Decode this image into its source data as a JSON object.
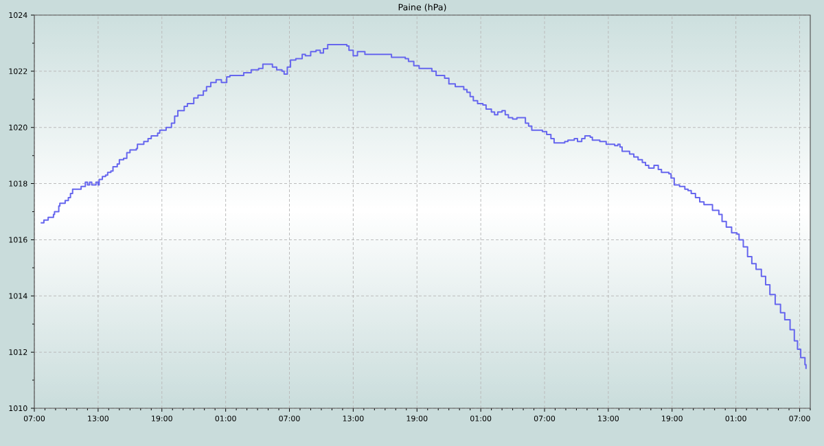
{
  "chart_data": {
    "type": "step",
    "title": "Paine (hPa)",
    "x": [
      "2000-01-01T07:36",
      "2000-01-01T07:54",
      "2000-01-01T08:18",
      "2000-01-01T08:48",
      "2000-01-01T08:54",
      "2000-01-01T09:18",
      "2000-01-01T09:24",
      "2000-01-01T09:54",
      "2000-01-01T10:12",
      "2000-01-01T10:24",
      "2000-01-01T10:36",
      "2000-01-01T11:24",
      "2000-01-01T11:48",
      "2000-01-01T12:00",
      "2000-01-01T12:12",
      "2000-01-01T12:24",
      "2000-01-01T12:48",
      "2000-01-01T13:00",
      "2000-01-01T13:06",
      "2000-01-01T13:24",
      "2000-01-01T13:42",
      "2000-01-01T13:54",
      "2000-01-01T14:12",
      "2000-01-01T14:24",
      "2000-01-01T14:48",
      "2000-01-01T15:00",
      "2000-01-01T15:24",
      "2000-01-01T15:42",
      "2000-01-01T16:00",
      "2000-01-01T16:36",
      "2000-01-01T16:42",
      "2000-01-01T17:18",
      "2000-01-01T17:42",
      "2000-01-01T18:00",
      "2000-01-01T18:36",
      "2000-01-01T18:48",
      "2000-01-01T19:24",
      "2000-01-01T19:54",
      "2000-01-01T20:12",
      "2000-01-01T20:30",
      "2000-01-01T21:06",
      "2000-01-01T21:24",
      "2000-01-01T22:00",
      "2000-01-01T22:24",
      "2000-01-01T22:54",
      "2000-01-01T23:12",
      "2000-01-01T23:36",
      "2000-01-02T00:06",
      "2000-01-02T00:36",
      "2000-01-02T01:06",
      "2000-01-02T01:24",
      "2000-01-02T02:42",
      "2000-01-02T03:24",
      "2000-01-02T04:06",
      "2000-01-02T04:30",
      "2000-01-02T05:24",
      "2000-01-02T05:48",
      "2000-01-02T06:18",
      "2000-01-02T06:30",
      "2000-01-02T06:48",
      "2000-01-02T07:06",
      "2000-01-02T07:36",
      "2000-01-02T08:12",
      "2000-01-02T08:30",
      "2000-01-02T09:00",
      "2000-01-02T09:30",
      "2000-01-02T09:54",
      "2000-01-02T10:12",
      "2000-01-02T10:36",
      "2000-01-02T12:24",
      "2000-01-02T12:36",
      "2000-01-02T13:00",
      "2000-01-02T13:24",
      "2000-01-02T14:06",
      "2000-01-02T16:36",
      "2000-01-02T17:54",
      "2000-01-02T18:12",
      "2000-01-02T18:42",
      "2000-01-02T19:12",
      "2000-01-02T20:24",
      "2000-01-02T20:48",
      "2000-01-02T21:36",
      "2000-01-02T22:00",
      "2000-01-02T22:36",
      "2000-01-02T23:24",
      "2000-01-02T23:42",
      "2000-01-03T00:00",
      "2000-01-03T00:18",
      "2000-01-03T00:42",
      "2000-01-03T01:12",
      "2000-01-03T01:30",
      "2000-01-03T02:00",
      "2000-01-03T02:18",
      "2000-01-03T02:36",
      "2000-01-03T03:00",
      "2000-01-03T03:18",
      "2000-01-03T03:36",
      "2000-01-03T04:00",
      "2000-01-03T04:24",
      "2000-01-03T05:12",
      "2000-01-03T05:30",
      "2000-01-03T05:48",
      "2000-01-03T06:48",
      "2000-01-03T07:12",
      "2000-01-03T07:36",
      "2000-01-03T07:54",
      "2000-01-03T08:54",
      "2000-01-03T09:12",
      "2000-01-03T09:48",
      "2000-01-03T10:06",
      "2000-01-03T10:30",
      "2000-01-03T10:48",
      "2000-01-03T11:18",
      "2000-01-03T11:30",
      "2000-01-03T12:12",
      "2000-01-03T12:48",
      "2000-01-03T13:36",
      "2000-01-03T13:54",
      "2000-01-03T14:06",
      "2000-01-03T14:18",
      "2000-01-03T15:00",
      "2000-01-03T15:24",
      "2000-01-03T15:48",
      "2000-01-03T16:12",
      "2000-01-03T16:30",
      "2000-01-03T16:48",
      "2000-01-03T17:18",
      "2000-01-03T17:42",
      "2000-01-03T18:00",
      "2000-01-03T18:42",
      "2000-01-03T18:54",
      "2000-01-03T19:12",
      "2000-01-03T19:42",
      "2000-01-03T20:12",
      "2000-01-03T20:30",
      "2000-01-03T20:48",
      "2000-01-03T21:12",
      "2000-01-03T21:36",
      "2000-01-03T22:00",
      "2000-01-03T22:48",
      "2000-01-03T23:24",
      "2000-01-03T23:42",
      "2000-01-04T00:06",
      "2000-01-04T00:36",
      "2000-01-04T01:06",
      "2000-01-04T01:18",
      "2000-01-04T01:42",
      "2000-01-04T02:06",
      "2000-01-04T02:30",
      "2000-01-04T02:54",
      "2000-01-04T03:24",
      "2000-01-04T03:48",
      "2000-01-04T04:12",
      "2000-01-04T04:42",
      "2000-01-04T05:12",
      "2000-01-04T05:36",
      "2000-01-04T06:06",
      "2000-01-04T06:30",
      "2000-01-04T06:48",
      "2000-01-04T07:06",
      "2000-01-04T07:30",
      "2000-01-04T07:36"
    ],
    "series": [
      {
        "color": "#6666ee",
        "values": [
          1016.6,
          1016.7,
          1016.8,
          1016.9,
          1017.0,
          1017.2,
          1017.3,
          1017.4,
          1017.5,
          1017.65,
          1017.8,
          1017.9,
          1018.05,
          1017.95,
          1018.05,
          1017.95,
          1018.05,
          1017.95,
          1018.15,
          1018.25,
          1018.3,
          1018.4,
          1018.45,
          1018.6,
          1018.7,
          1018.85,
          1018.9,
          1019.1,
          1019.2,
          1019.25,
          1019.4,
          1019.5,
          1019.6,
          1019.7,
          1019.8,
          1019.9,
          1020.0,
          1020.15,
          1020.4,
          1020.6,
          1020.75,
          1020.85,
          1021.05,
          1021.15,
          1021.3,
          1021.45,
          1021.6,
          1021.7,
          1021.6,
          1021.8,
          1021.85,
          1021.95,
          1022.05,
          1022.1,
          1022.25,
          1022.15,
          1022.05,
          1022.0,
          1021.9,
          1022.15,
          1022.4,
          1022.45,
          1022.6,
          1022.55,
          1022.7,
          1022.75,
          1022.65,
          1022.8,
          1022.95,
          1022.9,
          1022.75,
          1022.55,
          1022.7,
          1022.6,
          1022.5,
          1022.45,
          1022.35,
          1022.2,
          1022.1,
          1022.0,
          1021.85,
          1021.75,
          1021.55,
          1021.45,
          1021.35,
          1021.25,
          1021.1,
          1020.95,
          1020.85,
          1020.8,
          1020.65,
          1020.55,
          1020.45,
          1020.55,
          1020.6,
          1020.45,
          1020.35,
          1020.3,
          1020.35,
          1020.15,
          1020.05,
          1019.9,
          1019.85,
          1019.75,
          1019.6,
          1019.45,
          1019.5,
          1019.55,
          1019.6,
          1019.5,
          1019.6,
          1019.7,
          1019.65,
          1019.55,
          1019.5,
          1019.4,
          1019.35,
          1019.4,
          1019.3,
          1019.15,
          1019.05,
          1018.95,
          1018.85,
          1018.75,
          1018.65,
          1018.55,
          1018.65,
          1018.5,
          1018.4,
          1018.35,
          1018.2,
          1017.95,
          1017.9,
          1017.8,
          1017.75,
          1017.65,
          1017.5,
          1017.35,
          1017.25,
          1017.05,
          1016.9,
          1016.65,
          1016.45,
          1016.25,
          1016.2,
          1016.0,
          1015.75,
          1015.4,
          1015.15,
          1014.95,
          1014.7,
          1014.4,
          1014.05,
          1013.7,
          1013.4,
          1013.15,
          1012.8,
          1012.4,
          1012.1,
          1011.8,
          1011.55,
          1011.4
        ]
      }
    ],
    "xlim": [
      "2000-01-01T07:00",
      "2000-01-04T08:00"
    ],
    "xticks": [
      {
        "value": "2000-01-01T07:00",
        "label": "07:00"
      },
      {
        "value": "2000-01-01T08:00",
        "label": null
      },
      {
        "value": "2000-01-01T09:00",
        "label": null
      },
      {
        "value": "2000-01-01T10:00",
        "label": null
      },
      {
        "value": "2000-01-01T11:00",
        "label": null
      },
      {
        "value": "2000-01-01T12:00",
        "label": null
      },
      {
        "value": "2000-01-01T13:00",
        "label": "13:00"
      },
      {
        "value": "2000-01-01T14:00",
        "label": null
      },
      {
        "value": "2000-01-01T15:00",
        "label": null
      },
      {
        "value": "2000-01-01T16:00",
        "label": null
      },
      {
        "value": "2000-01-01T17:00",
        "label": null
      },
      {
        "value": "2000-01-01T18:00",
        "label": null
      },
      {
        "value": "2000-01-01T19:00",
        "label": "19:00"
      },
      {
        "value": "2000-01-01T20:00",
        "label": null
      },
      {
        "value": "2000-01-01T21:00",
        "label": null
      },
      {
        "value": "2000-01-01T22:00",
        "label": null
      },
      {
        "value": "2000-01-01T23:00",
        "label": null
      },
      {
        "value": "2000-01-02T00:00",
        "label": null
      },
      {
        "value": "2000-01-02T01:00",
        "label": "01:00"
      },
      {
        "value": "2000-01-02T02:00",
        "label": null
      },
      {
        "value": "2000-01-02T03:00",
        "label": null
      },
      {
        "value": "2000-01-02T04:00",
        "label": null
      },
      {
        "value": "2000-01-02T05:00",
        "label": null
      },
      {
        "value": "2000-01-02T06:00",
        "label": null
      },
      {
        "value": "2000-01-02T07:00",
        "label": "07:00"
      },
      {
        "value": "2000-01-02T08:00",
        "label": null
      },
      {
        "value": "2000-01-02T09:00",
        "label": null
      },
      {
        "value": "2000-01-02T10:00",
        "label": null
      },
      {
        "value": "2000-01-02T11:00",
        "label": null
      },
      {
        "value": "2000-01-02T12:00",
        "label": null
      },
      {
        "value": "2000-01-02T13:00",
        "label": "13:00"
      },
      {
        "value": "2000-01-02T14:00",
        "label": null
      },
      {
        "value": "2000-01-02T15:00",
        "label": null
      },
      {
        "value": "2000-01-02T16:00",
        "label": null
      },
      {
        "value": "2000-01-02T17:00",
        "label": null
      },
      {
        "value": "2000-01-02T18:00",
        "label": null
      },
      {
        "value": "2000-01-02T19:00",
        "label": "19:00"
      },
      {
        "value": "2000-01-02T20:00",
        "label": null
      },
      {
        "value": "2000-01-02T21:00",
        "label": null
      },
      {
        "value": "2000-01-02T22:00",
        "label": null
      },
      {
        "value": "2000-01-02T23:00",
        "label": null
      },
      {
        "value": "2000-01-03T00:00",
        "label": null
      },
      {
        "value": "2000-01-03T01:00",
        "label": "01:00"
      },
      {
        "value": "2000-01-03T02:00",
        "label": null
      },
      {
        "value": "2000-01-03T03:00",
        "label": null
      },
      {
        "value": "2000-01-03T04:00",
        "label": null
      },
      {
        "value": "2000-01-03T05:00",
        "label": null
      },
      {
        "value": "2000-01-03T06:00",
        "label": null
      },
      {
        "value": "2000-01-03T07:00",
        "label": "07:00"
      },
      {
        "value": "2000-01-03T08:00",
        "label": null
      },
      {
        "value": "2000-01-03T09:00",
        "label": null
      },
      {
        "value": "2000-01-03T10:00",
        "label": null
      },
      {
        "value": "2000-01-03T11:00",
        "label": null
      },
      {
        "value": "2000-01-03T12:00",
        "label": null
      },
      {
        "value": "2000-01-03T13:00",
        "label": "13:00"
      },
      {
        "value": "2000-01-03T14:00",
        "label": null
      },
      {
        "value": "2000-01-03T15:00",
        "label": null
      },
      {
        "value": "2000-01-03T16:00",
        "label": null
      },
      {
        "value": "2000-01-03T17:00",
        "label": null
      },
      {
        "value": "2000-01-03T18:00",
        "label": null
      },
      {
        "value": "2000-01-03T19:00",
        "label": "19:00"
      },
      {
        "value": "2000-01-03T20:00",
        "label": null
      },
      {
        "value": "2000-01-03T21:00",
        "label": null
      },
      {
        "value": "2000-01-03T22:00",
        "label": null
      },
      {
        "value": "2000-01-03T23:00",
        "label": null
      },
      {
        "value": "2000-01-04T00:00",
        "label": null
      },
      {
        "value": "2000-01-04T01:00",
        "label": "01:00"
      },
      {
        "value": "2000-01-04T02:00",
        "label": null
      },
      {
        "value": "2000-01-04T03:00",
        "label": null
      },
      {
        "value": "2000-01-04T04:00",
        "label": null
      },
      {
        "value": "2000-01-04T05:00",
        "label": null
      },
      {
        "value": "2000-01-04T06:00",
        "label": null
      },
      {
        "value": "2000-01-04T07:00",
        "label": "07:00"
      },
      {
        "value": "2000-01-04T08:00",
        "label": null
      }
    ],
    "ylim": [
      1010,
      1024
    ],
    "yticks": [
      1010,
      {
        "value": 1011,
        "label": null
      },
      1012,
      {
        "value": 1013,
        "label": null
      },
      1014,
      {
        "value": 1015,
        "label": null
      },
      1016,
      {
        "value": 1017,
        "label": null
      },
      1018,
      {
        "value": 1019,
        "label": null
      },
      1020,
      {
        "value": 1021,
        "label": null
      },
      1022,
      {
        "value": 1023,
        "label": null
      },
      1024
    ],
    "grid": true
  }
}
